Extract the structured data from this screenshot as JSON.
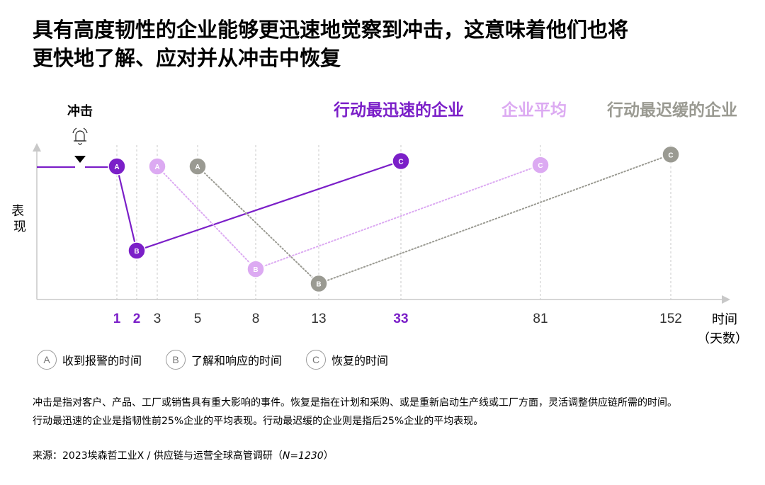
{
  "title_lines": [
    "具有高度韧性的企业能够更迅速地觉察到冲击，这意味着他们也将",
    "更快地了解、应对并从冲击中恢复"
  ],
  "colors": {
    "fastest": "#7b1fc8",
    "average": "#dcaaf2",
    "slowest": "#9a9a92",
    "axis": "#c8c8c8",
    "grid": "#c8c8c8"
  },
  "chart_data": {
    "type": "line",
    "shock_label": "冲击",
    "ylabel": "表现",
    "xlabel": "时间",
    "xlabel_unit": "（天数）",
    "x_ticks": [
      {
        "label": "1",
        "highlight": true
      },
      {
        "label": "2",
        "highlight": true
      },
      {
        "label": "3",
        "highlight": false
      },
      {
        "label": "5",
        "highlight": false
      },
      {
        "label": "8",
        "highlight": false
      },
      {
        "label": "13",
        "highlight": false
      },
      {
        "label": "33",
        "highlight": true
      },
      {
        "label": "81",
        "highlight": false
      },
      {
        "label": "152",
        "highlight": false
      }
    ],
    "series": [
      {
        "name": "行动最迅速的企业",
        "color_key": "fastest",
        "style": "solid",
        "points": [
          {
            "label": "A",
            "day": 1,
            "performance": 100
          },
          {
            "label": "B",
            "day": 2,
            "performance": 36
          },
          {
            "label": "C",
            "day": 33,
            "performance": 104
          }
        ]
      },
      {
        "name": "企业平均",
        "color_key": "average",
        "style": "dotted",
        "points": [
          {
            "label": "A",
            "day": 3,
            "performance": 100
          },
          {
            "label": "B",
            "day": 8,
            "performance": 22
          },
          {
            "label": "C",
            "day": 81,
            "performance": 101
          }
        ]
      },
      {
        "name": "行动最迟缓的企业",
        "color_key": "slowest",
        "style": "dotted",
        "points": [
          {
            "label": "A",
            "day": 5,
            "performance": 100
          },
          {
            "label": "B",
            "day": 13,
            "performance": 11
          },
          {
            "label": "C",
            "day": 152,
            "performance": 109
          }
        ]
      }
    ]
  },
  "legend": [
    {
      "letter": "A",
      "text": "收到报警的时间"
    },
    {
      "letter": "B",
      "text": "了解和响应的时间"
    },
    {
      "letter": "C",
      "text": "恢复的时间"
    }
  ],
  "footnote_lines": [
    "冲击是指对客户、产品、工厂或销售具有重大影响的事件。恢复是指在计划和采购、或是重新启动生产线或工厂方面，灵活调整供应链所需的时间。",
    "行动最迅速的企业是指韧性前25%企业的平均表现。行动最迟缓的企业则是指后25%企业的平均表现。"
  ],
  "source": {
    "prefix": "来源：2023埃森哲工业X / 供应链与运营全球高管调研（",
    "n": "N=1230",
    "suffix": "）"
  }
}
